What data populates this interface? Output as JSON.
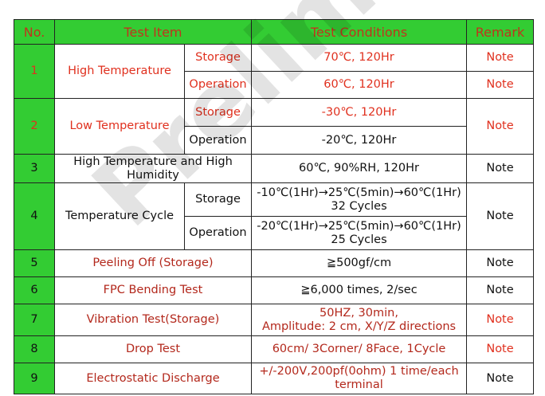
{
  "table": {
    "header": [
      "No.",
      "Test Item",
      "Test Conditions",
      "Remark"
    ],
    "rows": [
      {
        "no": "1",
        "item": "High Temperature",
        "sub": [
          "Storage",
          "Operation"
        ],
        "conditions": [
          "70℃, 120Hr",
          "60℃, 120Hr"
        ],
        "remark": [
          "Note",
          "Note"
        ]
      },
      {
        "no": "2",
        "item": "Low Temperature",
        "sub": [
          "Storage",
          "Operation"
        ],
        "conditions": [
          "-30℃, 120Hr",
          "-20℃, 120Hr"
        ],
        "remark": [
          "Note"
        ]
      },
      {
        "no": "3",
        "item": "High Temperature and High Humidity",
        "conditions": [
          "60℃, 90%RH, 120Hr"
        ],
        "remark": [
          "Note"
        ]
      },
      {
        "no": "4",
        "item": "Temperature Cycle",
        "sub": [
          "Storage",
          "Operation"
        ],
        "conditions": [
          "-10℃(1Hr)→25℃(5min)→60℃(1Hr)\n32 Cycles",
          "-20℃(1Hr)→25℃(5min)→60℃(1Hr)\n25 Cycles"
        ],
        "remark": [
          "Note"
        ]
      },
      {
        "no": "5",
        "item": "Peeling Off (Storage)",
        "conditions": [
          "≧500gf/cm"
        ],
        "remark": [
          "Note"
        ]
      },
      {
        "no": "6",
        "item": "FPC Bending Test",
        "conditions": [
          "≧6,000 times, 2/sec"
        ],
        "remark": [
          "Note"
        ]
      },
      {
        "no": "7",
        "item": "Vibration Test(Storage)",
        "conditions": [
          "50HZ, 30min,\nAmplitude: 2 cm, X/Y/Z directions"
        ],
        "remark": [
          "Note"
        ]
      },
      {
        "no": "8",
        "item": "Drop Test",
        "conditions": [
          "60cm/ 3Corner/ 8Face, 1Cycle"
        ],
        "remark": [
          "Note"
        ]
      },
      {
        "no": "9",
        "item": "Electrostatic Discharge",
        "conditions": [
          "+/-200V,200pf(0ohm) 1 time/each\nterminal"
        ],
        "remark": [
          "Note"
        ]
      }
    ]
  },
  "watermark": "Preliminary"
}
